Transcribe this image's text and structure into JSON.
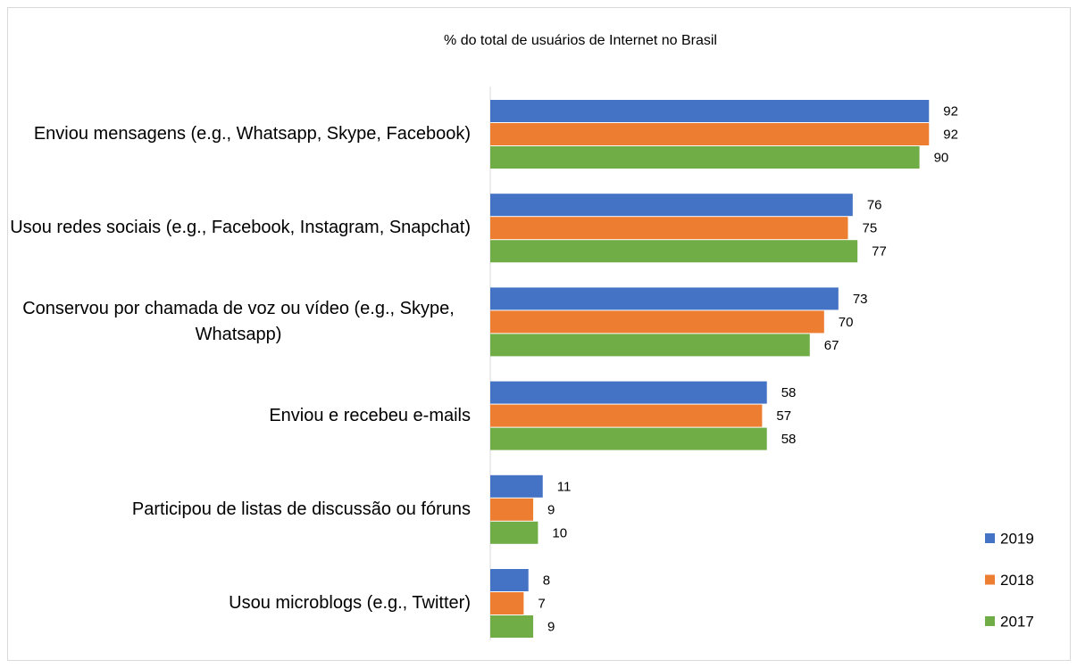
{
  "chart_data": {
    "type": "bar",
    "orientation": "horizontal",
    "title": "% do total de usuários de Internet no Brasil",
    "categories": [
      "Enviou mensagens (e.g., Whatsapp, Skype, Facebook)",
      "Usou redes sociais (e.g., Facebook, Instagram, Snapchat)",
      "Conservou por chamada de voz ou vídeo (e.g., Skype, Whatsapp)",
      "Enviou e recebeu e-mails",
      "Participou de listas de discussão ou fóruns",
      "Usou microblogs (e.g., Twitter)"
    ],
    "series": [
      {
        "name": "2019",
        "color": "#4472c4",
        "values": [
          92,
          76,
          73,
          58,
          11,
          8
        ]
      },
      {
        "name": "2018",
        "color": "#ed7d31",
        "values": [
          92,
          75,
          70,
          57,
          9,
          7
        ]
      },
      {
        "name": "2017",
        "color": "#70ad47",
        "values": [
          90,
          77,
          67,
          58,
          10,
          9
        ]
      }
    ],
    "xlim": [
      0,
      100
    ],
    "legend": "right"
  }
}
